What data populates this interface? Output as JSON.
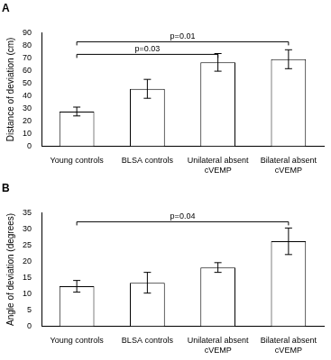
{
  "chart_data": [
    {
      "type": "bar",
      "title": "A",
      "categories": [
        "Young controls",
        "BLSA controls",
        "Unilateral absent cVEMP",
        "Bilateral absent cVEMP"
      ],
      "values": [
        27.5,
        45.5,
        66.5,
        69
      ],
      "errors": [
        3.5,
        7.5,
        7,
        7.5
      ],
      "color": "#ffffff",
      "y_label": "Distance of deviation (cm)",
      "ylim": [
        0,
        90
      ],
      "yticks": [
        0,
        10,
        20,
        30,
        40,
        50,
        60,
        70,
        80,
        90
      ],
      "grid": false,
      "annotations": [
        {
          "from": "Young controls",
          "to": "Bilateral absent cVEMP",
          "label": "p=0.01"
        },
        {
          "from": "Young controls",
          "to": "Unilateral absent cVEMP",
          "label": "p=0.03"
        }
      ]
    },
    {
      "type": "bar",
      "title": "B",
      "categories": [
        "Young controls",
        "BLSA controls",
        "Unilateral absent cVEMP",
        "Bilateral absent cVEMP"
      ],
      "values": [
        12.3,
        13.4,
        18.1,
        26.2
      ],
      "errors": [
        1.8,
        3.2,
        1.5,
        4.1
      ],
      "color": "#ffffff",
      "y_label": "Angle of deviation (degrees)",
      "ylim": [
        0,
        35
      ],
      "yticks": [
        0,
        5,
        10,
        15,
        20,
        25,
        30,
        35
      ],
      "grid": false,
      "annotations": [
        {
          "from": "Young controls",
          "to": "Bilateral absent cVEMP",
          "label": "p=0.04"
        }
      ]
    }
  ]
}
